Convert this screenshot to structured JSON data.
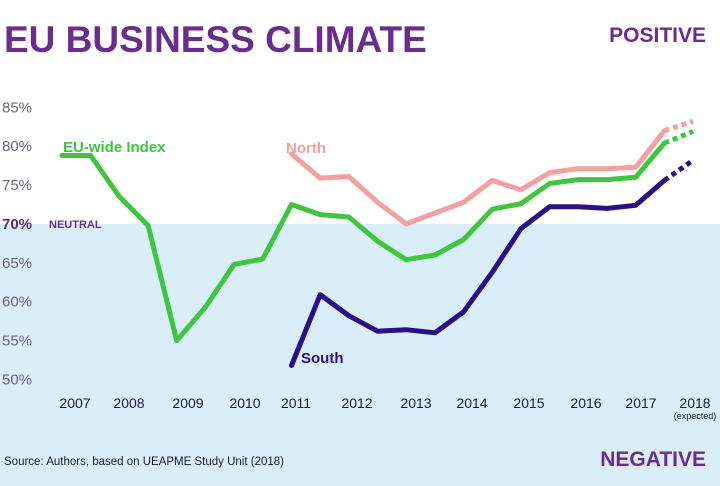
{
  "colors": {
    "eu": "#3ec63e",
    "north": "#f5a0a0",
    "south": "#2a0f86",
    "title": "#6a2c8f",
    "negative_bg": "#d9eef9",
    "tick": "#6b5f8a"
  },
  "chart_data": {
    "type": "line",
    "title": "EU BUSINESS CLIMATE",
    "positive_label": "POSITIVE",
    "negative_label": "NEGATIVE",
    "neutral_label": "NEUTRAL",
    "source": "Source: Authors, based on UEAPME Study Unit (2018)",
    "ylim": [
      48,
      88
    ],
    "neutral_value": 70,
    "yticks": [
      "85%",
      "80%",
      "75%",
      "70%",
      "65%",
      "60%",
      "55%",
      "50%"
    ],
    "ytick_values": [
      85,
      80,
      75,
      70,
      65,
      60,
      55,
      50
    ],
    "xlim": [
      2006.8,
      2018.2
    ],
    "xticks": [
      "2007",
      "2008",
      "2009",
      "2010",
      "2011",
      "2012",
      "2013",
      "2014",
      "2015",
      "2016",
      "2017",
      "2018"
    ],
    "xtick_values": [
      2007,
      2008,
      2009,
      2010,
      2011,
      2012,
      2013,
      2014,
      2015,
      2016,
      2017,
      2018
    ],
    "xtick_note": "(expected)",
    "grid": false,
    "series": [
      {
        "name": "EU-wide Index",
        "color_key": "eu",
        "x": [
          2006.8,
          2007.3,
          2007.8,
          2008.3,
          2008.8,
          2009.3,
          2009.8,
          2010.3,
          2010.8,
          2011.3,
          2011.8,
          2012.3,
          2012.8,
          2013.3,
          2013.8,
          2014.3,
          2014.8,
          2015.3,
          2015.8,
          2016.3,
          2016.8,
          2017.3
        ],
        "y": [
          78.8,
          78.8,
          73.5,
          69.8,
          55.0,
          59.3,
          64.8,
          65.5,
          72.5,
          71.2,
          70.9,
          67.8,
          65.4,
          66.0,
          68.0,
          71.9,
          72.6,
          75.2,
          75.7,
          75.7,
          76.0,
          80.4
        ],
        "expected_x": [
          2017.3,
          2017.8
        ],
        "expected_y": [
          80.4,
          81.9
        ]
      },
      {
        "name": "North",
        "color_key": "north",
        "x": [
          2010.8,
          2011.3,
          2011.8,
          2012.3,
          2012.8,
          2013.3,
          2013.8,
          2014.3,
          2014.8,
          2015.3,
          2015.8,
          2016.3,
          2016.8,
          2017.3
        ],
        "y": [
          79.0,
          75.9,
          76.1,
          72.8,
          70.0,
          71.4,
          72.8,
          75.6,
          74.4,
          76.6,
          77.1,
          77.1,
          77.3,
          82.0
        ],
        "expected_x": [
          2017.3,
          2017.8
        ],
        "expected_y": [
          82.0,
          83.2
        ]
      },
      {
        "name": "South",
        "color_key": "south",
        "x": [
          2010.8,
          2011.3,
          2011.8,
          2012.3,
          2012.8,
          2013.3,
          2013.8,
          2014.3,
          2014.8,
          2015.3,
          2015.8,
          2016.3,
          2016.8,
          2017.3
        ],
        "y": [
          51.8,
          60.9,
          58.2,
          56.2,
          56.4,
          56.0,
          58.7,
          63.8,
          69.4,
          72.2,
          72.2,
          72.0,
          72.4,
          75.6
        ],
        "expected_x": [
          2017.3,
          2017.8
        ],
        "expected_y": [
          75.6,
          78.2
        ]
      }
    ]
  }
}
